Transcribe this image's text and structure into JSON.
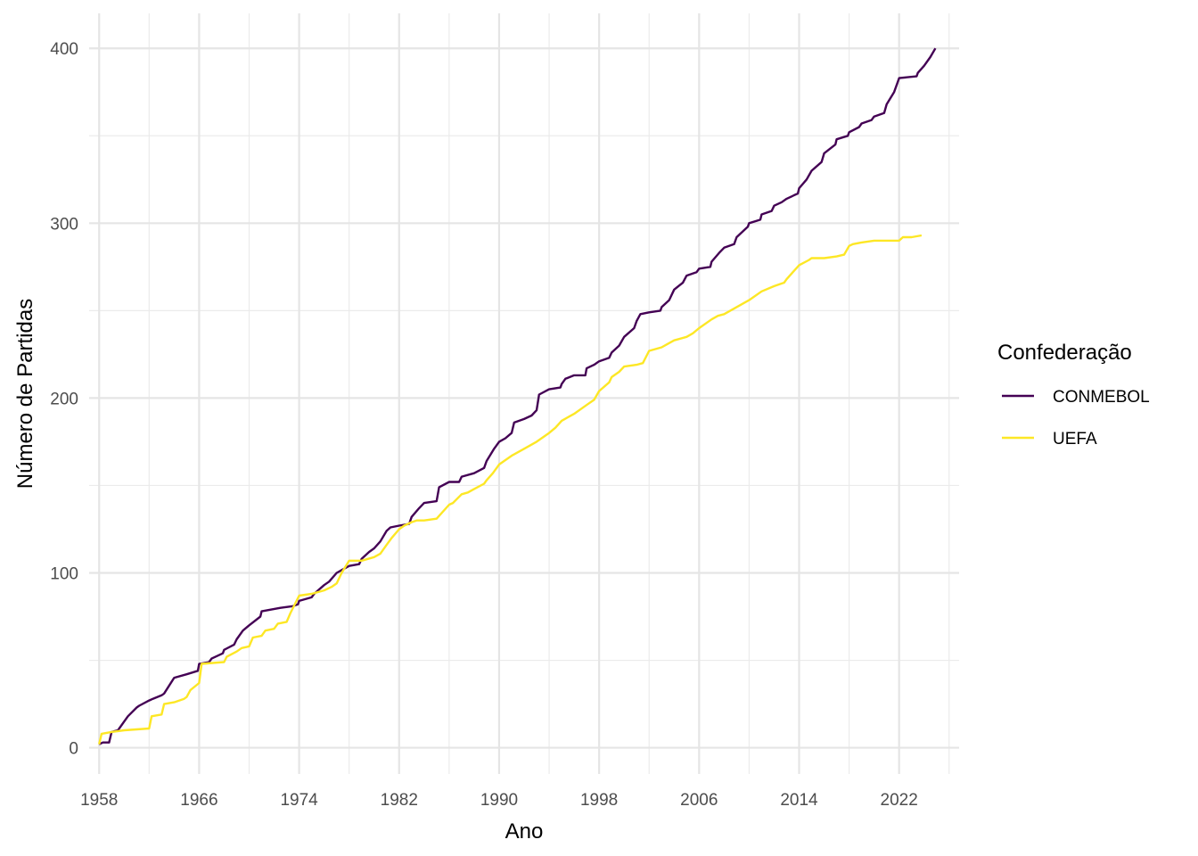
{
  "chart_data": {
    "type": "line",
    "xlabel": "Ano",
    "ylabel": "Número de Partidas",
    "xlim": [
      1957.2,
      2026.8
    ],
    "ylim": [
      -15,
      420
    ],
    "x_ticks": [
      1958,
      1966,
      1974,
      1982,
      1990,
      1998,
      2006,
      2014,
      2022
    ],
    "x_minor_ticks": [
      1962,
      1970,
      1978,
      1986,
      1994,
      2002,
      2010,
      2018,
      2026
    ],
    "y_ticks": [
      0,
      100,
      200,
      300,
      400
    ],
    "y_minor_ticks": [
      50,
      150,
      250,
      350
    ],
    "grid": true,
    "legend": {
      "title": "Confederação",
      "placement": "right"
    },
    "series": [
      {
        "name": "CONMEBOL",
        "color": "#440154",
        "x": [
          1958.0,
          1958.3,
          1958.8,
          1959.0,
          1959.5,
          1960.0,
          1960.3,
          1961.0,
          1961.2,
          1962.0,
          1962.3,
          1963.0,
          1963.2,
          1964.0,
          1965.0,
          1965.9,
          1966.0,
          1966.8,
          1967.0,
          1967.9,
          1968.0,
          1968.8,
          1969.0,
          1969.5,
          1970.0,
          1970.9,
          1971.0,
          1972.5,
          1973.5,
          1973.9,
          1974.0,
          1975.0,
          1975.2,
          1976.0,
          1976.4,
          1977.0,
          1977.5,
          1978.0,
          1978.8,
          1979.0,
          1979.6,
          1980.0,
          1980.5,
          1981.0,
          1981.3,
          1982.0,
          1982.8,
          1983.0,
          1983.6,
          1984.0,
          1985.0,
          1985.2,
          1986.0,
          1986.8,
          1987.0,
          1988.0,
          1988.8,
          1989.0,
          1989.6,
          1990.0,
          1990.5,
          1991.0,
          1991.2,
          1992.0,
          1992.6,
          1993.0,
          1993.2,
          1994.0,
          1994.9,
          1995.0,
          1995.3,
          1996.0,
          1996.9,
          1997.0,
          1997.6,
          1998.0,
          1998.8,
          1999.0,
          1999.6,
          2000.0,
          2000.8,
          2001.0,
          2001.3,
          2002.0,
          2002.9,
          2003.0,
          2003.6,
          2004.0,
          2004.7,
          2005.0,
          2005.8,
          2006.0,
          2006.9,
          2007.0,
          2007.6,
          2008.0,
          2008.8,
          2009.0,
          2009.9,
          2010.0,
          2010.9,
          2011.0,
          2011.8,
          2012.0,
          2012.6,
          2013.0,
          2013.9,
          2014.0,
          2014.6,
          2015.0,
          2015.8,
          2016.0,
          2016.9,
          2017.0,
          2017.9,
          2018.0,
          2018.8,
          2019.0,
          2019.8,
          2020.0,
          2020.8,
          2021.0,
          2021.6,
          2022.0,
          2023.4,
          2023.5,
          2024.0,
          2024.5,
          2024.9
        ],
        "y": [
          2,
          3,
          3,
          9,
          10,
          15,
          18,
          23,
          24,
          27,
          28,
          30,
          31,
          40,
          42,
          44,
          48,
          49,
          51,
          54,
          56,
          59,
          62,
          67,
          70,
          75,
          78,
          80,
          81,
          82,
          84,
          86,
          88,
          93,
          95,
          100,
          102,
          104,
          105,
          108,
          112,
          114,
          118,
          124,
          126,
          127,
          128,
          132,
          137,
          140,
          141,
          149,
          152,
          152,
          155,
          157,
          160,
          164,
          171,
          175,
          177,
          180,
          186,
          188,
          190,
          193,
          202,
          205,
          206,
          208,
          211,
          213,
          213,
          217,
          219,
          221,
          223,
          226,
          230,
          235,
          240,
          244,
          248,
          249,
          250,
          252,
          256,
          262,
          266,
          270,
          272,
          274,
          275,
          278,
          283,
          286,
          288,
          292,
          298,
          300,
          302,
          305,
          307,
          310,
          312,
          314,
          317,
          320,
          325,
          330,
          335,
          340,
          345,
          348,
          350,
          352,
          355,
          357,
          359,
          361,
          363,
          368,
          375,
          383,
          384,
          386,
          390,
          395,
          400
        ]
      },
      {
        "name": "UEFA",
        "color": "#fde725",
        "x": [
          1958.0,
          1958.2,
          1959.0,
          1960.0,
          1962.0,
          1962.2,
          1963.0,
          1963.2,
          1964.0,
          1964.8,
          1965.0,
          1965.3,
          1966.0,
          1966.2,
          1968.0,
          1968.2,
          1969.0,
          1969.4,
          1970.0,
          1970.3,
          1971.0,
          1971.3,
          1972.0,
          1972.3,
          1973.0,
          1973.3,
          1974.0,
          1975.0,
          1976.0,
          1976.6,
          1977.0,
          1977.4,
          1978.0,
          1979.0,
          1980.0,
          1980.5,
          1981.0,
          1981.4,
          1982.0,
          1982.4,
          1983.0,
          1983.4,
          1984.0,
          1985.0,
          1986.0,
          1986.3,
          1987.0,
          1987.5,
          1988.0,
          1988.8,
          1989.0,
          1989.5,
          1990.0,
          1991.0,
          1992.0,
          1993.0,
          1994.0,
          1994.5,
          1995.0,
          1996.0,
          1997.0,
          1997.6,
          1998.0,
          1998.8,
          1999.0,
          1999.6,
          2000.0,
          2001.0,
          2001.5,
          2002.0,
          2003.0,
          2003.5,
          2004.0,
          2005.0,
          2005.5,
          2006.0,
          2007.0,
          2007.5,
          2008.0,
          2009.0,
          2010.0,
          2011.0,
          2012.0,
          2012.8,
          2013.0,
          2013.5,
          2014.0,
          2014.8,
          2015.0,
          2016.0,
          2017.0,
          2017.6,
          2018.0,
          2018.3,
          2019.0,
          2020.0,
          2021.0,
          2022.0,
          2022.3,
          2023.0,
          2023.8
        ],
        "y": [
          2,
          8,
          9,
          10,
          11,
          18,
          19,
          25,
          26,
          28,
          29,
          33,
          37,
          48,
          49,
          52,
          55,
          57,
          58,
          63,
          64,
          67,
          68,
          71,
          72,
          77,
          87,
          88,
          90,
          92,
          94,
          100,
          107,
          107,
          109,
          111,
          116,
          120,
          125,
          127,
          129,
          130,
          130,
          131,
          139,
          140,
          145,
          146,
          148,
          151,
          153,
          157,
          162,
          167,
          171,
          175,
          180,
          183,
          187,
          191,
          196,
          199,
          204,
          209,
          212,
          215,
          218,
          219,
          220,
          227,
          229,
          231,
          233,
          235,
          237,
          240,
          245,
          247,
          248,
          252,
          256,
          261,
          264,
          266,
          268,
          272,
          276,
          279,
          280,
          280,
          281,
          282,
          287,
          288,
          289,
          290,
          290,
          290,
          292,
          292,
          293
        ]
      }
    ]
  }
}
